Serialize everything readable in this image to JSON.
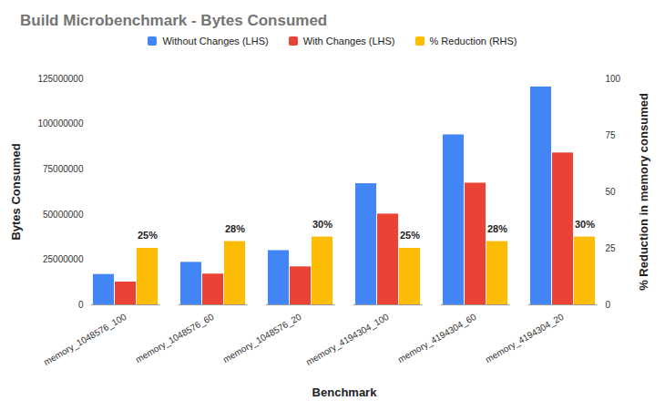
{
  "chart_data": {
    "type": "bar",
    "title": "Build Microbenchmark - Bytes Consumed",
    "x_label": "Benchmark",
    "y_label": "Bytes Consumed",
    "y2_label": "% Reduction in memory consumed",
    "categories": [
      "memory_1048576_100",
      "memory_1048576_60",
      "memory_1048576_20",
      "memory_4194304_100",
      "memory_4194304_60",
      "memory_4194304_20"
    ],
    "series": [
      {
        "name": "Without Changes (LHS)",
        "color": "#4285f4",
        "values": [
          16800000,
          23500000,
          30000000,
          67000000,
          94000000,
          120500000
        ]
      },
      {
        "name": "With Changes (LHS)",
        "color": "#ea4335",
        "values": [
          12600000,
          17000000,
          21000000,
          50200000,
          67300000,
          84000000
        ]
      },
      {
        "name": "% Reduction (RHS)",
        "color": "#fbbc04",
        "axis": "y2",
        "values": [
          25,
          28,
          30,
          25,
          28,
          30
        ],
        "value_labels": [
          "25%",
          "28%",
          "30%",
          "25%",
          "28%",
          "30%"
        ]
      }
    ],
    "ylim": [
      0,
      125000000
    ],
    "yticks": [
      0,
      25000000,
      50000000,
      75000000,
      100000000,
      125000000
    ],
    "y2lim": [
      0,
      100
    ],
    "y2ticks": [
      0,
      25,
      50,
      75,
      100
    ],
    "grid": false,
    "legend": "top",
    "data_labels": true
  }
}
